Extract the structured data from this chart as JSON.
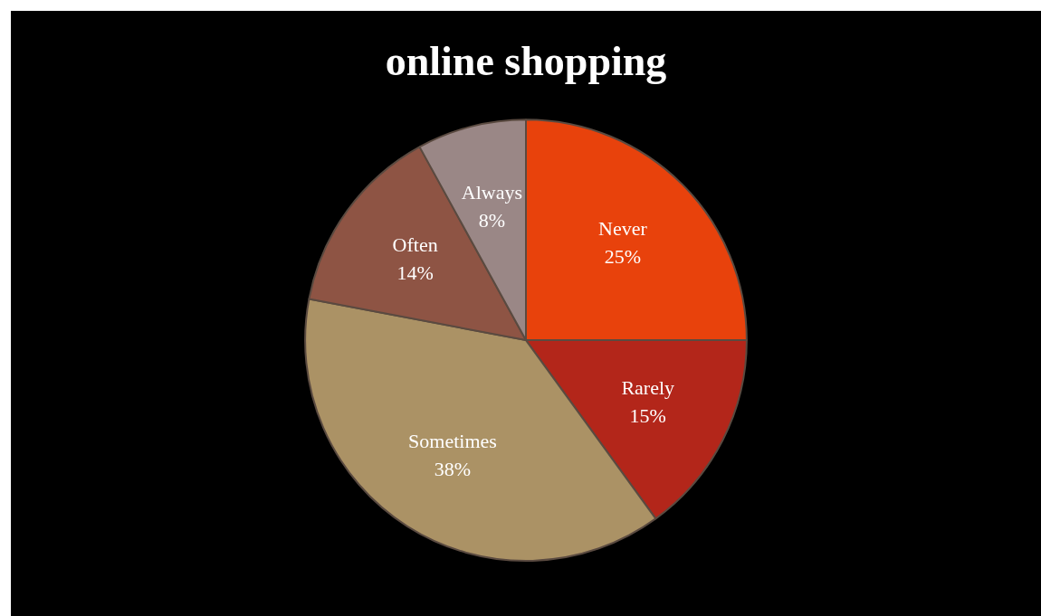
{
  "chart_data": {
    "type": "pie",
    "title": "online shopping",
    "categories": [
      "Never",
      "Rarely",
      "Sometimes",
      "Often",
      "Always"
    ],
    "values": [
      25,
      15,
      38,
      14,
      8
    ],
    "colors": [
      "#e8420c",
      "#b3261a",
      "#ab9265",
      "#8e5444",
      "#9a8786"
    ],
    "value_labels": [
      "25%",
      "15%",
      "38%",
      "14%",
      "8%"
    ],
    "legend": false
  }
}
